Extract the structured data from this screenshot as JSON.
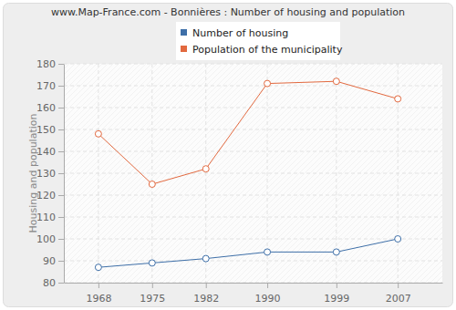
{
  "chart_data": {
    "type": "line",
    "title": "www.Map-France.com - Bonnières : Number of housing and population",
    "ylabel": "Housing and population",
    "x": [
      1968,
      1975,
      1982,
      1990,
      1999,
      2007
    ],
    "series": [
      {
        "name": "Number of housing",
        "color": "#3e6fa8",
        "marker": "circle",
        "values": [
          87,
          89,
          91,
          94,
          94,
          100
        ]
      },
      {
        "name": "Population of the municipality",
        "color": "#e2693f",
        "marker": "circle",
        "values": [
          148,
          125,
          132,
          171,
          172,
          164
        ]
      }
    ],
    "xlim": [
      1963.5,
      2012.8
    ],
    "xticks": [
      1968,
      1975,
      1982,
      1990,
      1999,
      2007
    ],
    "ylim": [
      80,
      180
    ],
    "yticks": [
      80,
      90,
      100,
      110,
      120,
      130,
      140,
      150,
      160,
      170,
      180
    ],
    "grid": true,
    "legend": "top"
  }
}
